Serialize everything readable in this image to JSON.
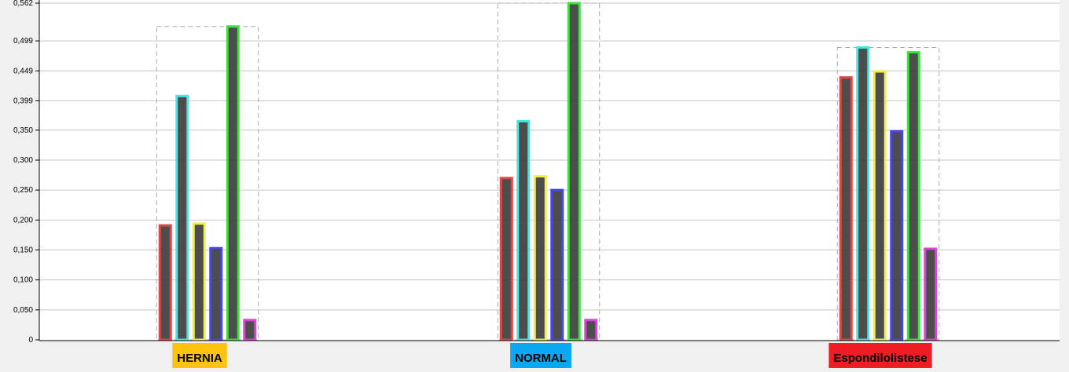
{
  "chart_data": {
    "type": "bar",
    "title": "",
    "xlabel": "",
    "ylabel": "",
    "ylim": [
      0,
      0.562
    ],
    "y_ticks": [
      "0",
      "0,050",
      "0,100",
      "0,150",
      "0,200",
      "0,250",
      "0,300",
      "0,350",
      "0,399",
      "0,449",
      "0,499",
      "0,562"
    ],
    "categories": [
      "HERNIA",
      "NORMAL",
      "Espondilolistese"
    ],
    "category_colors": [
      "#fec30e",
      "#0aa8f2",
      "#ee1c25"
    ],
    "grid": true,
    "legend": "none",
    "series": [
      {
        "color": "#e04848",
        "values": [
          0.191,
          0.27,
          0.438
        ]
      },
      {
        "color": "#40e8e8",
        "values": [
          0.407,
          0.365,
          0.488
        ]
      },
      {
        "color": "#f0f040",
        "values": [
          0.194,
          0.273,
          0.448
        ]
      },
      {
        "color": "#4848e0",
        "values": [
          0.153,
          0.25,
          0.348
        ]
      },
      {
        "color": "#40e040",
        "values": [
          0.523,
          0.562,
          0.48
        ]
      },
      {
        "color": "#e040e0",
        "values": [
          0.033,
          0.033,
          0.152
        ]
      }
    ]
  }
}
